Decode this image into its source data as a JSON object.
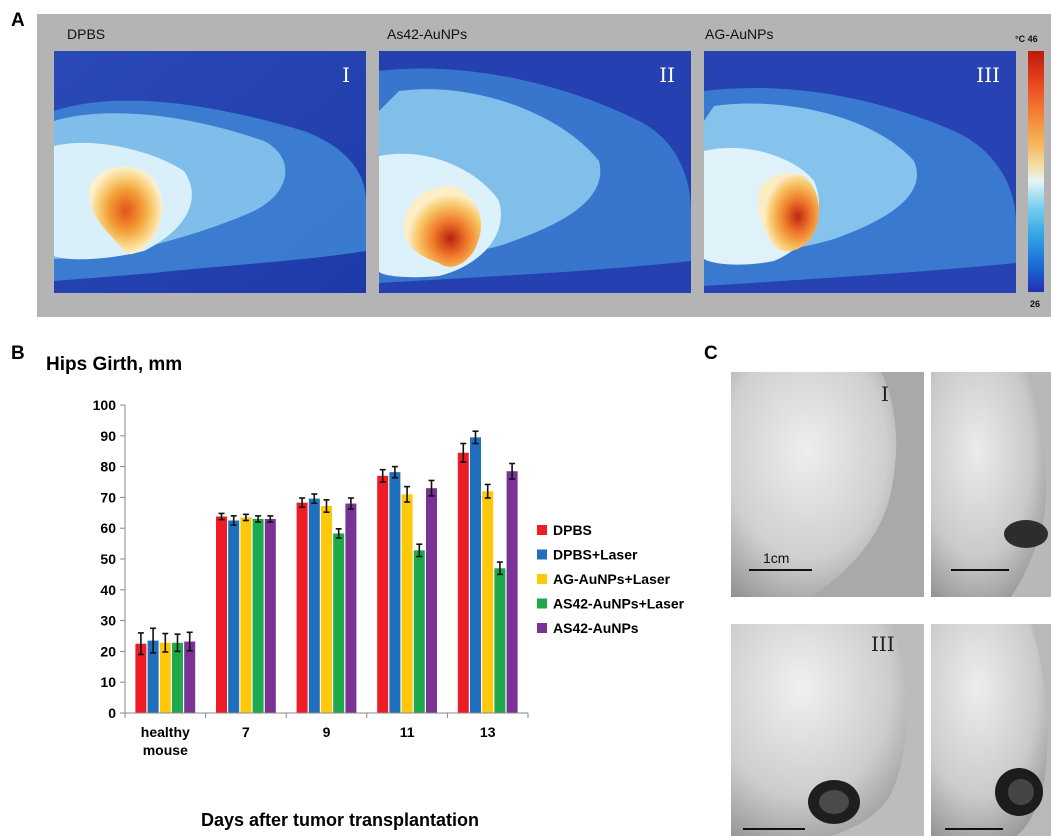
{
  "panel_letters": {
    "a": "A",
    "b": "B",
    "c": "C"
  },
  "panelA": {
    "images": [
      {
        "title": "DPBS",
        "roman": "I"
      },
      {
        "title": "As42-AuNPs",
        "roman": "II"
      },
      {
        "title": "AG-AuNPs",
        "roman": "III"
      }
    ],
    "scale_unit_max": "°C 46",
    "scale_min": "26"
  },
  "panelC": {
    "romans": [
      "I",
      "III"
    ],
    "scalebar_label": "1cm"
  },
  "chart_data": {
    "type": "bar",
    "title": "Hips Girth, mm",
    "xlabel": "Days after tumor transplantation",
    "ylabel": "",
    "ylim": [
      0,
      100
    ],
    "yticks": [
      0,
      10,
      20,
      30,
      40,
      50,
      60,
      70,
      80,
      90,
      100
    ],
    "categories": [
      [
        "healthy",
        "mouse"
      ],
      [
        "7"
      ],
      [
        "9"
      ],
      [
        "11"
      ],
      [
        "13"
      ]
    ],
    "grid": false,
    "legend_position": "right",
    "series": [
      {
        "name": "DPBS",
        "color": "#ee1c25",
        "values": [
          22.5,
          63.8,
          68.3,
          77.0,
          84.5
        ],
        "errors": [
          3.5,
          1.0,
          1.5,
          2.0,
          3.0
        ]
      },
      {
        "name": "DPBS+Laser",
        "color": "#1f6fbd",
        "values": [
          23.5,
          62.5,
          69.6,
          78.2,
          89.5
        ],
        "errors": [
          4.0,
          1.5,
          1.5,
          1.8,
          2.0
        ]
      },
      {
        "name": "AG-AuNPs+Laser",
        "color": "#ffc80a",
        "values": [
          22.8,
          63.5,
          67.2,
          71.0,
          72.0
        ],
        "errors": [
          3.0,
          1.0,
          2.0,
          2.5,
          2.2
        ]
      },
      {
        "name": "AS42-AuNPs+Laser",
        "color": "#1fa94d",
        "values": [
          22.8,
          63.0,
          58.3,
          52.8,
          47.0
        ],
        "errors": [
          2.8,
          1.0,
          1.5,
          2.0,
          2.0
        ]
      },
      {
        "name": "AS42-AuNPs",
        "color": "#7a3294",
        "values": [
          23.2,
          63.0,
          68.0,
          73.0,
          78.5
        ],
        "errors": [
          3.0,
          1.0,
          1.8,
          2.5,
          2.5
        ]
      }
    ]
  }
}
